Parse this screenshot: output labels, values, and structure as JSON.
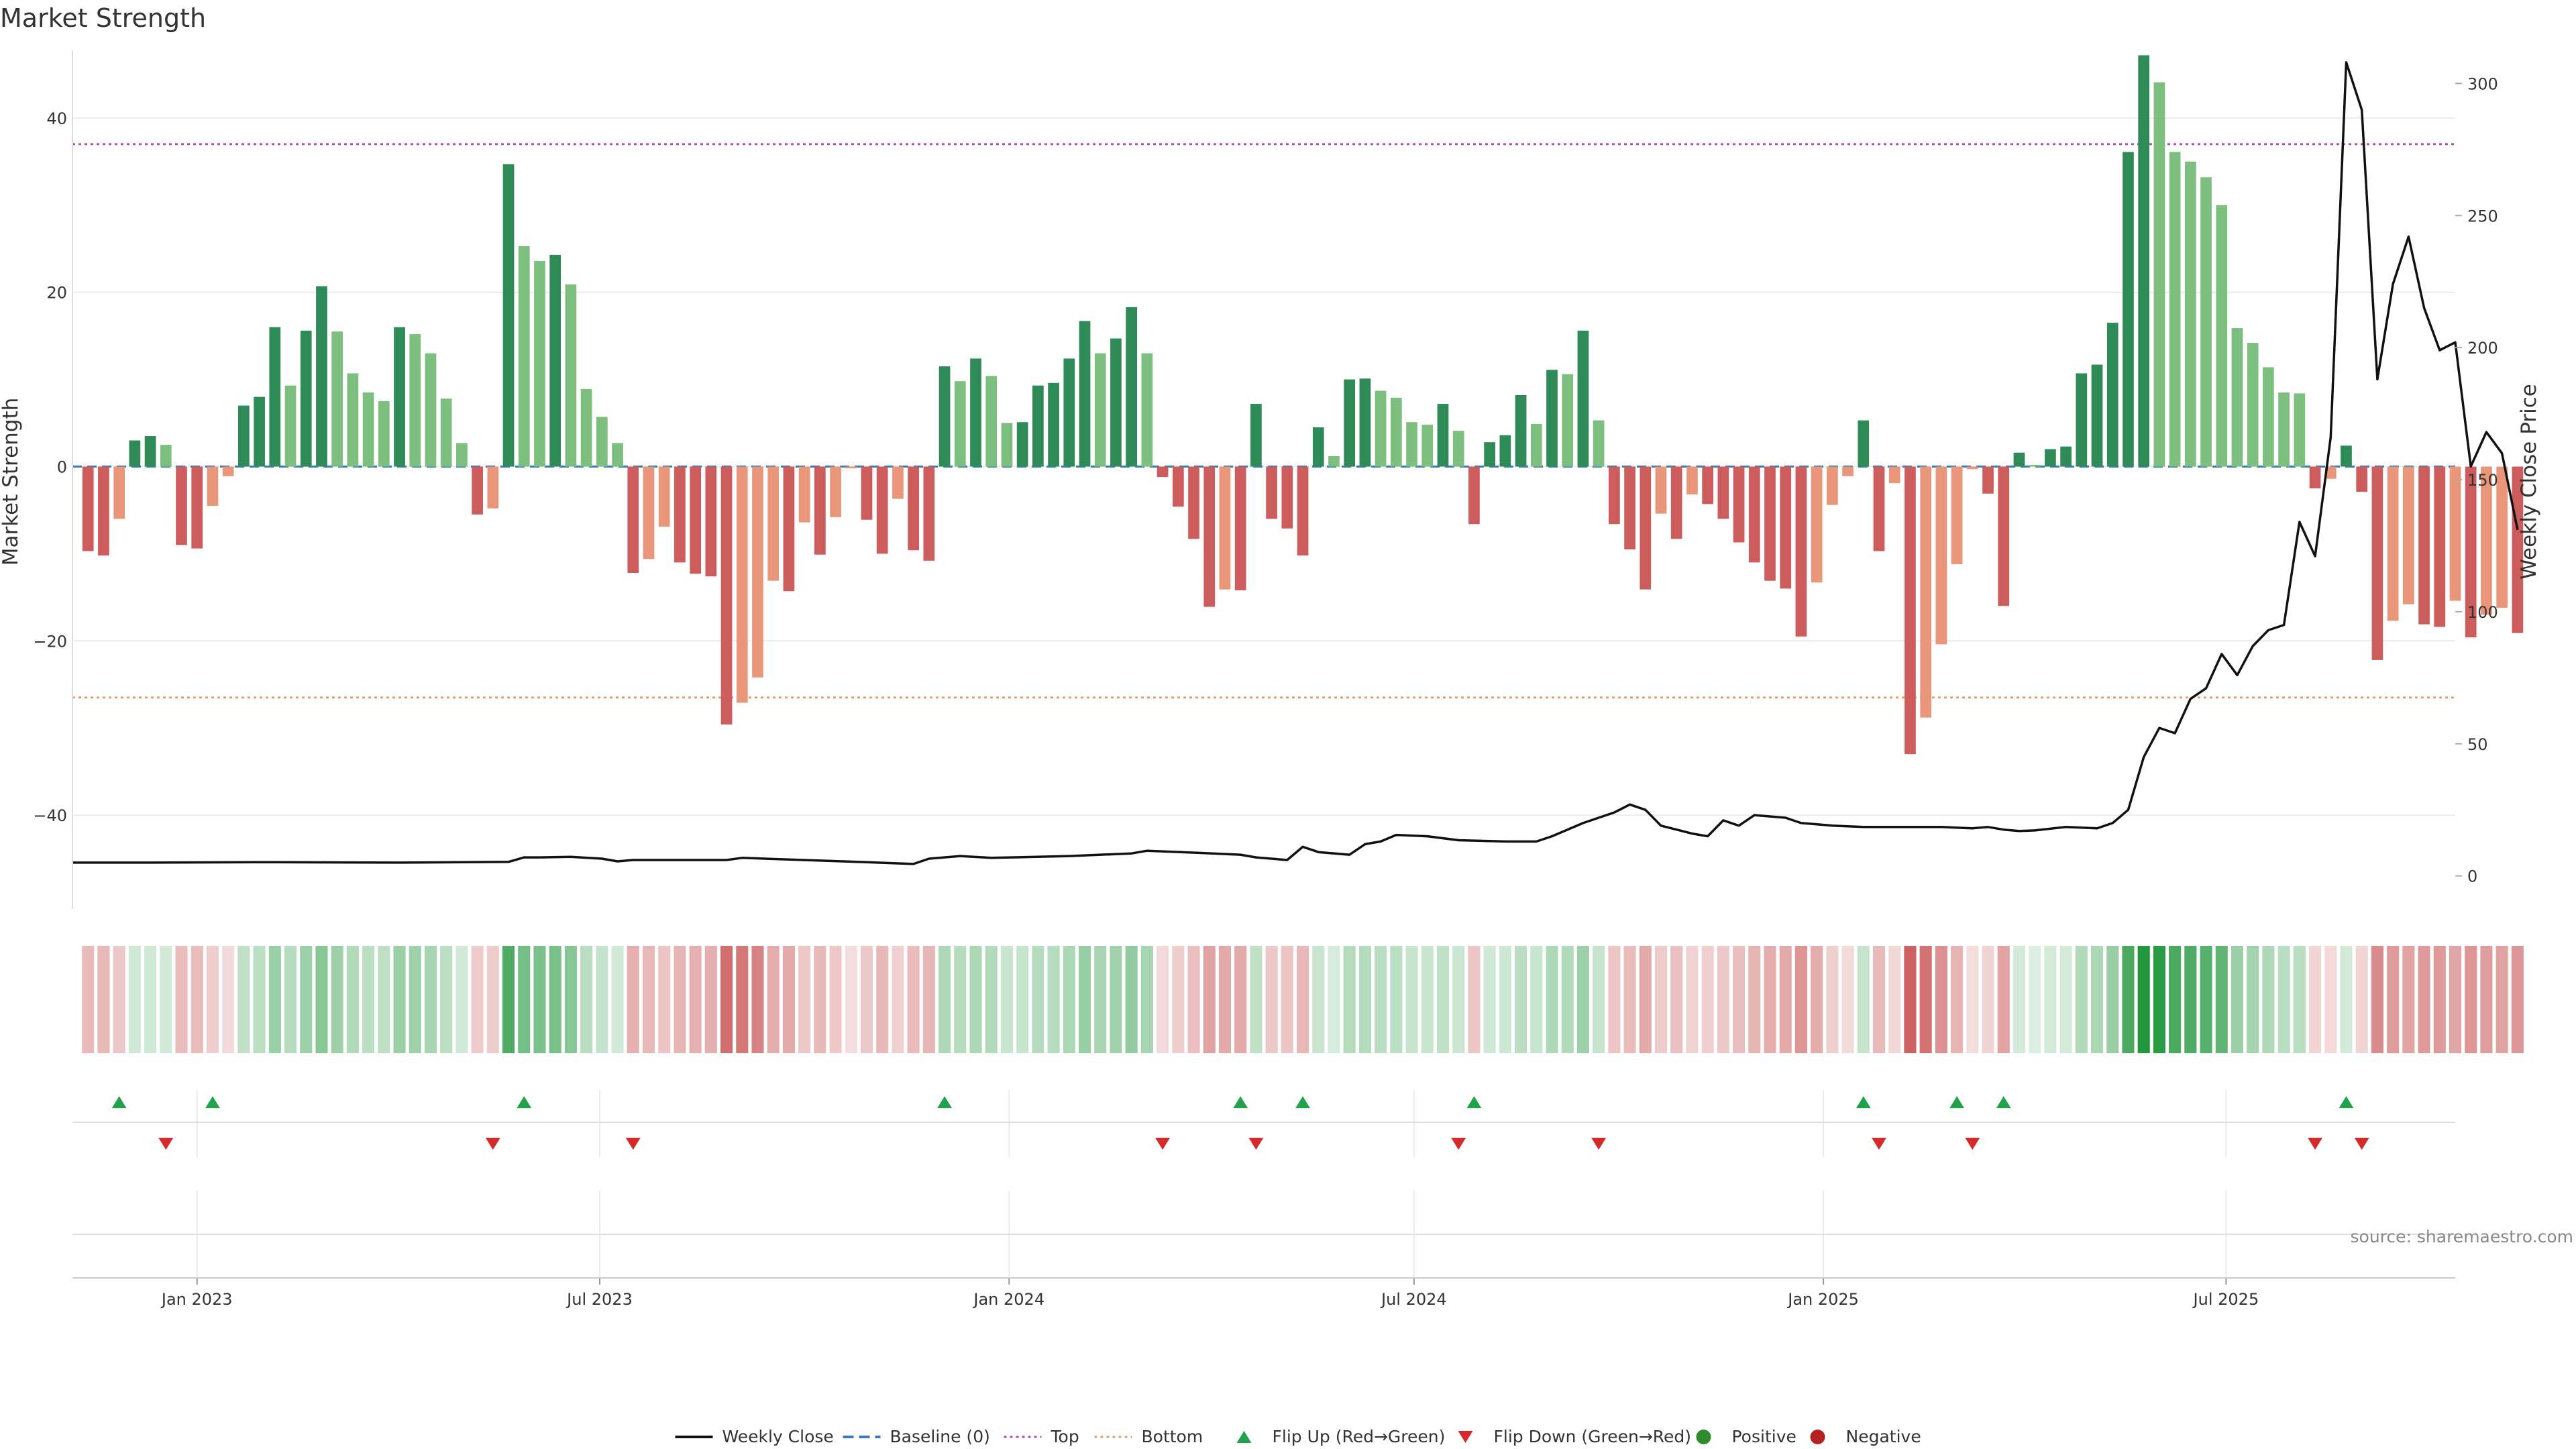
{
  "page": {
    "title": "Market Strength",
    "source": "source: sharemaestro.com"
  },
  "chart_data": {
    "type": "bar",
    "title": "Market Strength",
    "left_axis": {
      "label": "Market Strength",
      "ylim": [
        -50,
        47
      ],
      "ticks": [
        -40,
        -20,
        0,
        20,
        40
      ]
    },
    "right_axis": {
      "label": "Weekly Close Price",
      "ylim": [
        -10,
        310
      ],
      "ticks": [
        0,
        50,
        100,
        150,
        200,
        250,
        300
      ]
    },
    "x_axis": {
      "date_range": [
        "2022-11-06",
        "2025-10-12"
      ],
      "ticks": [
        {
          "date": "2023-01-01",
          "label": "Jan 2023"
        },
        {
          "date": "2023-07-01",
          "label": "Jul 2023"
        },
        {
          "date": "2024-01-01",
          "label": "Jan 2024"
        },
        {
          "date": "2024-07-01",
          "label": "Jul 2024"
        },
        {
          "date": "2025-01-01",
          "label": "Jan 2025"
        },
        {
          "date": "2025-07-01",
          "label": "Jul 2025"
        }
      ]
    },
    "reference_lines": {
      "baseline": 0,
      "top": 37,
      "bottom": -26.5
    },
    "series": [
      {
        "name": "Market Strength",
        "start_date": "2022-11-13",
        "interval_days": 7,
        "values": [
          -9.7,
          -10.2,
          -6,
          3,
          3.5,
          2.5,
          -9,
          -9.4,
          -4.5,
          -1.1,
          7,
          8,
          16,
          9.3,
          15.6,
          20.7,
          15.5,
          10.7,
          8.5,
          7.5,
          16,
          15.2,
          13,
          7.8,
          2.7,
          -5.5,
          -4.8,
          34.7,
          25.3,
          23.6,
          24.3,
          20.9,
          8.9,
          5.7,
          2.7,
          -12.2,
          -10.6,
          -6.9,
          -11,
          -12.3,
          -12.6,
          -29.6,
          -27.1,
          -24.2,
          -13.1,
          -14.3,
          -6.4,
          -10.1,
          -5.8,
          -0.2,
          -6.1,
          -10,
          -3.7,
          -9.6,
          -10.8,
          11.5,
          9.8,
          12.4,
          10.4,
          5,
          5.1,
          9.3,
          9.6,
          12.4,
          16.7,
          13,
          14.7,
          18.3,
          13,
          -1.2,
          -4.6,
          -8.3,
          -16.1,
          -14.1,
          -14.2,
          7.2,
          -6,
          -7.1,
          -10.2,
          4.5,
          1.2,
          10,
          10.1,
          8.7,
          7.9,
          5.1,
          4.8,
          7.2,
          4.1,
          -6.6,
          2.8,
          3.6,
          8.2,
          4.9,
          11.1,
          10.6,
          15.6,
          5.3,
          -6.6,
          -9.5,
          -14.1,
          -5.4,
          -8.3,
          -3.2,
          -4.3,
          -6,
          -8.7,
          -11,
          -13.1,
          -14,
          -19.5,
          -13.3,
          -4.4,
          -1.1,
          5.3,
          -9.7,
          -1.9,
          -33,
          -28.8,
          -20.4,
          -11.2,
          -0.3,
          -3.1,
          -16,
          1.6,
          0.2,
          2,
          2.3,
          10.7,
          11.7,
          16.5,
          36.1,
          47.2,
          44.1,
          36.1,
          35,
          33.2,
          30,
          15.9,
          14.2,
          11.4,
          8.5,
          8.4,
          -2.5,
          -1.4,
          2.4,
          -2.9,
          -22.2,
          -17.7,
          -15.8,
          -18.1,
          -18.4,
          -15.4,
          -19.6,
          -17,
          -16.2,
          -19.1
        ]
      },
      {
        "name": "Weekly Close",
        "axis": "right",
        "points": [
          [
            "2022-11-06",
            5
          ],
          [
            "2022-12-11",
            5
          ],
          [
            "2023-02-05",
            5.2
          ],
          [
            "2023-04-02",
            5
          ],
          [
            "2023-05-21",
            5.3
          ],
          [
            "2023-05-28",
            7
          ],
          [
            "2023-06-04",
            7
          ],
          [
            "2023-06-18",
            7.2
          ],
          [
            "2023-07-02",
            6.5
          ],
          [
            "2023-07-09",
            5.5
          ],
          [
            "2023-07-16",
            6
          ],
          [
            "2023-07-30",
            6
          ],
          [
            "2023-08-27",
            6
          ],
          [
            "2023-09-03",
            6.8
          ],
          [
            "2023-09-24",
            6.2
          ],
          [
            "2023-10-29",
            5.2
          ],
          [
            "2023-11-19",
            4.5
          ],
          [
            "2023-11-26",
            6.5
          ],
          [
            "2023-12-10",
            7.5
          ],
          [
            "2023-12-24",
            6.8
          ],
          [
            "2024-01-28",
            7.5
          ],
          [
            "2024-02-25",
            8.5
          ],
          [
            "2024-03-03",
            9.5
          ],
          [
            "2024-03-24",
            8.8
          ],
          [
            "2024-04-14",
            8
          ],
          [
            "2024-04-21",
            7
          ],
          [
            "2024-05-05",
            6
          ],
          [
            "2024-05-12",
            11
          ],
          [
            "2024-05-19",
            9
          ],
          [
            "2024-06-02",
            8
          ],
          [
            "2024-06-09",
            12
          ],
          [
            "2024-06-16",
            13
          ],
          [
            "2024-06-23",
            15.5
          ],
          [
            "2024-07-07",
            15
          ],
          [
            "2024-07-21",
            13.5
          ],
          [
            "2024-08-11",
            13
          ],
          [
            "2024-08-25",
            13
          ],
          [
            "2024-09-01",
            15
          ],
          [
            "2024-09-15",
            20
          ],
          [
            "2024-09-29",
            24
          ],
          [
            "2024-10-06",
            27
          ],
          [
            "2024-10-13",
            25
          ],
          [
            "2024-10-20",
            19
          ],
          [
            "2024-11-03",
            16
          ],
          [
            "2024-11-10",
            15
          ],
          [
            "2024-11-17",
            21
          ],
          [
            "2024-11-24",
            19
          ],
          [
            "2024-12-01",
            23
          ],
          [
            "2024-12-15",
            22
          ],
          [
            "2024-12-22",
            20
          ],
          [
            "2024-12-29",
            19.5
          ],
          [
            "2025-01-05",
            19
          ],
          [
            "2025-01-19",
            18.5
          ],
          [
            "2025-02-23",
            18.5
          ],
          [
            "2025-03-09",
            18
          ],
          [
            "2025-03-16",
            18.5
          ],
          [
            "2025-03-23",
            17.5
          ],
          [
            "2025-03-30",
            17
          ],
          [
            "2025-04-06",
            17.2
          ],
          [
            "2025-04-20",
            18.5
          ],
          [
            "2025-05-04",
            18
          ],
          [
            "2025-05-11",
            20
          ],
          [
            "2025-05-18",
            25
          ],
          [
            "2025-05-25",
            45
          ],
          [
            "2025-06-01",
            56
          ],
          [
            "2025-06-08",
            54
          ],
          [
            "2025-06-15",
            67
          ],
          [
            "2025-06-22",
            71
          ],
          [
            "2025-06-29",
            84
          ],
          [
            "2025-07-06",
            76
          ],
          [
            "2025-07-13",
            87
          ],
          [
            "2025-07-20",
            93
          ],
          [
            "2025-07-27",
            95
          ],
          [
            "2025-08-03",
            134
          ],
          [
            "2025-08-10",
            121
          ],
          [
            "2025-08-17",
            166
          ],
          [
            "2025-08-24",
            308
          ],
          [
            "2025-08-31",
            290
          ],
          [
            "2025-09-07",
            188
          ],
          [
            "2025-09-14",
            224
          ],
          [
            "2025-09-21",
            242
          ],
          [
            "2025-09-28",
            215
          ],
          [
            "2025-10-05",
            199
          ],
          [
            "2025-10-12",
            202
          ],
          [
            "2025-10-19",
            155
          ],
          [
            "2025-10-26",
            168
          ],
          [
            "2025-11-02",
            160
          ],
          [
            "2025-11-09",
            131
          ]
        ]
      }
    ],
    "flip_up": [
      "2022-11-27",
      "2023-01-08",
      "2023-05-28",
      "2023-12-03",
      "2024-04-14",
      "2024-05-12",
      "2024-07-28",
      "2025-01-19",
      "2025-03-02",
      "2025-03-23",
      "2025-08-24"
    ],
    "flip_down": [
      "2022-12-18",
      "2023-05-14",
      "2023-07-16",
      "2024-03-10",
      "2024-04-21",
      "2024-07-21",
      "2024-09-22",
      "2025-01-26",
      "2025-03-09",
      "2025-08-10",
      "2025-08-31"
    ],
    "legend": [
      {
        "label": "Weekly Close",
        "symbol": "line",
        "color": "#111111"
      },
      {
        "label": "Baseline (0)",
        "symbol": "dash",
        "color": "#3a7ab8"
      },
      {
        "label": "Top",
        "symbol": "dot",
        "color": "#b04db3"
      },
      {
        "label": "Bottom",
        "symbol": "dot",
        "color": "#e0a070"
      },
      {
        "label": "Flip Up (Red→Green)",
        "symbol": "tri-up",
        "color": "#22a24a"
      },
      {
        "label": "Flip Down (Green→Red)",
        "symbol": "tri-down",
        "color": "#d42a2a"
      },
      {
        "label": "Positive",
        "symbol": "circle",
        "color": "#2e8b2e"
      },
      {
        "label": "Negative",
        "symbol": "circle",
        "color": "#b22222"
      }
    ],
    "colors": {
      "pos_dark": "#2e8b57",
      "pos_light": "#7dbf7f",
      "neg_dark": "#cd5c5c",
      "neg_light": "#e9967a",
      "heat_pos_rgb": [
        34,
        150,
        60
      ],
      "heat_neg_rgb": [
        190,
        50,
        50
      ],
      "close_line": "#111111",
      "grid": "#ebebeb"
    }
  }
}
